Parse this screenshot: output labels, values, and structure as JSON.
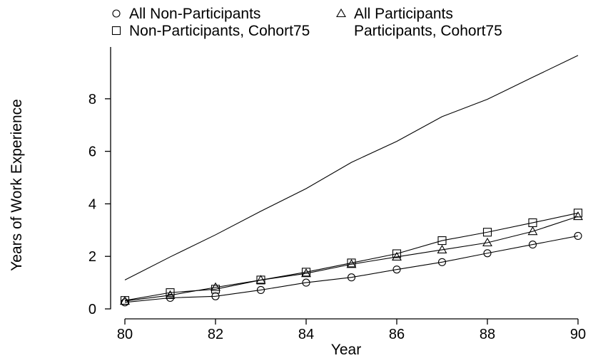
{
  "chart_data": {
    "type": "line",
    "title": "",
    "xlabel": "Year",
    "ylabel": "Years of Work Experience",
    "xlim": [
      80,
      90
    ],
    "ylim": [
      0,
      9.7
    ],
    "xticks": [
      80,
      82,
      84,
      86,
      88,
      90
    ],
    "yticks": [
      0,
      2,
      4,
      6,
      8
    ],
    "grid": false,
    "legend_position": "top",
    "x": [
      80,
      81,
      82,
      83,
      84,
      85,
      86,
      87,
      88,
      89,
      90
    ],
    "series": [
      {
        "name": "All Non-Participants",
        "marker": "circle",
        "values": [
          0.25,
          0.42,
          0.48,
          0.72,
          1.0,
          1.2,
          1.5,
          1.78,
          2.12,
          2.45,
          2.78
        ]
      },
      {
        "name": "All Participants",
        "marker": "triangle",
        "values": [
          0.3,
          0.52,
          0.82,
          1.1,
          1.35,
          1.7,
          1.98,
          2.25,
          2.52,
          2.95,
          3.52
        ]
      },
      {
        "name": "Non-Participants, Cohort75",
        "marker": "square",
        "values": [
          0.32,
          0.62,
          0.75,
          1.1,
          1.4,
          1.75,
          2.1,
          2.6,
          2.92,
          3.28,
          3.65
        ]
      },
      {
        "name": "Participants, Cohort75",
        "marker": "none",
        "values": [
          1.1,
          1.98,
          2.82,
          3.72,
          4.58,
          5.58,
          6.38,
          7.32,
          7.98,
          8.82,
          9.65
        ]
      }
    ]
  }
}
